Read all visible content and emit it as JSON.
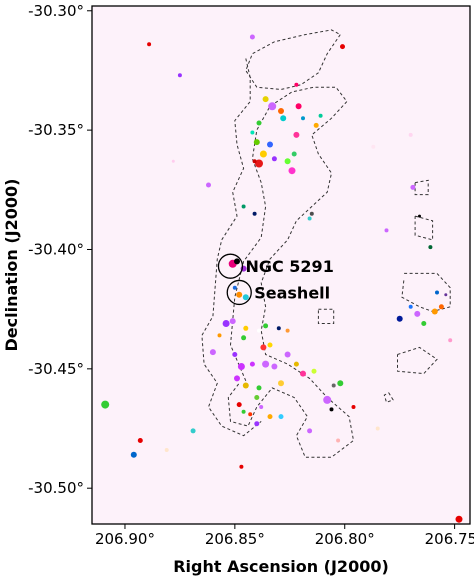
{
  "chart_data": {
    "type": "scatter",
    "title": "",
    "xlabel": "Right Ascension (J2000)",
    "ylabel": "Declination (J2000)",
    "xlim": [
      206.915,
      206.743
    ],
    "ylim": [
      -30.515,
      -30.298
    ],
    "x_inverted": true,
    "grid": false,
    "legend": "none",
    "colors": {
      "background": "#fdf2fa",
      "contour": "#333333"
    },
    "xticks": [
      {
        "value": 206.9,
        "label": "206.90°"
      },
      {
        "value": 206.85,
        "label": "206.85°"
      },
      {
        "value": 206.8,
        "label": "206.80°"
      },
      {
        "value": 206.75,
        "label": "206.75°"
      }
    ],
    "yticks": [
      {
        "value": -30.3,
        "label": "-30.30°"
      },
      {
        "value": -30.35,
        "label": "-30.35°"
      },
      {
        "value": -30.4,
        "label": "-30.40°"
      },
      {
        "value": -30.45,
        "label": "-30.45°"
      },
      {
        "value": -30.5,
        "label": "-30.50°"
      }
    ],
    "annotations": [
      {
        "name": "ngc-5291",
        "text": "NGC 5291",
        "ra": 206.852,
        "dec": -30.407
      },
      {
        "name": "seashell",
        "text": "Seashell",
        "ra": 206.848,
        "dec": -30.418
      }
    ],
    "contours": [
      [
        [
          206.845,
          -30.455
        ],
        [
          206.852,
          -30.44
        ],
        [
          206.85,
          -30.42
        ],
        [
          206.846,
          -30.405
        ],
        [
          206.838,
          -30.395
        ],
        [
          206.836,
          -30.382
        ],
        [
          206.838,
          -30.372
        ],
        [
          206.842,
          -30.362
        ],
        [
          206.84,
          -30.35
        ],
        [
          206.834,
          -30.34
        ],
        [
          206.824,
          -30.334
        ],
        [
          206.814,
          -30.332
        ],
        [
          206.804,
          -30.332
        ],
        [
          206.799,
          -30.338
        ],
        [
          206.806,
          -30.345
        ],
        [
          206.815,
          -30.352
        ],
        [
          206.812,
          -30.36
        ],
        [
          206.806,
          -30.368
        ],
        [
          206.808,
          -30.376
        ],
        [
          206.815,
          -30.382
        ],
        [
          206.822,
          -30.388
        ],
        [
          206.826,
          -30.396
        ],
        [
          206.834,
          -30.404
        ],
        [
          206.838,
          -30.414
        ],
        [
          206.836,
          -30.424
        ],
        [
          206.838,
          -30.434
        ],
        [
          206.836,
          -30.444
        ],
        [
          206.826,
          -30.448
        ],
        [
          206.816,
          -30.454
        ],
        [
          206.808,
          -30.462
        ],
        [
          206.798,
          -30.47
        ],
        [
          206.796,
          -30.48
        ],
        [
          206.806,
          -30.487
        ],
        [
          206.818,
          -30.487
        ],
        [
          206.822,
          -30.478
        ],
        [
          206.817,
          -30.47
        ],
        [
          206.823,
          -30.462
        ],
        [
          206.833,
          -30.458
        ],
        [
          206.84,
          -30.466
        ],
        [
          206.844,
          -30.474
        ],
        [
          206.852,
          -30.472
        ],
        [
          206.853,
          -30.462
        ],
        [
          206.848,
          -30.456
        ]
      ],
      [
        [
          206.845,
          -30.32
        ],
        [
          206.843,
          -30.328
        ],
        [
          206.843,
          -30.338
        ],
        [
          206.85,
          -30.346
        ],
        [
          206.849,
          -30.356
        ],
        [
          206.846,
          -30.366
        ],
        [
          206.851,
          -30.376
        ],
        [
          206.849,
          -30.386
        ],
        [
          206.856,
          -30.396
        ],
        [
          206.858,
          -30.404
        ],
        [
          206.859,
          -30.416
        ],
        [
          206.86,
          -30.428
        ],
        [
          206.865,
          -30.436
        ],
        [
          206.864,
          -30.448
        ],
        [
          206.858,
          -30.456
        ],
        [
          206.862,
          -30.466
        ],
        [
          206.856,
          -30.474
        ],
        [
          206.846,
          -30.478
        ],
        [
          206.838,
          -30.472
        ]
      ],
      [
        [
          206.802,
          -30.31
        ],
        [
          206.808,
          -30.318
        ],
        [
          206.812,
          -30.326
        ],
        [
          206.82,
          -30.331
        ],
        [
          206.829,
          -30.333
        ],
        [
          206.84,
          -30.332
        ],
        [
          206.845,
          -30.325
        ],
        [
          206.842,
          -30.318
        ],
        [
          206.832,
          -30.313
        ],
        [
          206.818,
          -30.31
        ],
        [
          206.806,
          -30.308
        ],
        [
          206.802,
          -30.31
        ]
      ],
      [
        [
          206.773,
          -30.41
        ],
        [
          206.758,
          -30.41
        ],
        [
          206.752,
          -30.416
        ],
        [
          206.752,
          -30.424
        ],
        [
          206.76,
          -30.426
        ],
        [
          206.766,
          -30.424
        ],
        [
          206.774,
          -30.42
        ],
        [
          206.773,
          -30.412
        ]
      ],
      [
        [
          206.776,
          -30.444
        ],
        [
          206.766,
          -30.441
        ],
        [
          206.758,
          -30.446
        ],
        [
          206.764,
          -30.452
        ],
        [
          206.776,
          -30.451
        ],
        [
          206.776,
          -30.444
        ]
      ],
      [
        [
          206.768,
          -30.386
        ],
        [
          206.76,
          -30.388
        ],
        [
          206.76,
          -30.396
        ],
        [
          206.768,
          -30.394
        ],
        [
          206.768,
          -30.386
        ]
      ],
      [
        [
          206.768,
          -30.372
        ],
        [
          206.762,
          -30.371
        ],
        [
          206.762,
          -30.377
        ],
        [
          206.768,
          -30.377
        ],
        [
          206.768,
          -30.372
        ]
      ],
      [
        [
          206.812,
          -30.425
        ],
        [
          206.805,
          -30.425
        ],
        [
          206.805,
          -30.431
        ],
        [
          206.812,
          -30.431
        ],
        [
          206.812,
          -30.425
        ]
      ],
      [
        [
          206.78,
          -30.46
        ],
        [
          206.778,
          -30.463
        ],
        [
          206.781,
          -30.464
        ],
        [
          206.782,
          -30.461
        ],
        [
          206.78,
          -30.46
        ]
      ]
    ],
    "points": [
      {
        "ra": 206.851,
        "dec": -30.406,
        "r": 4,
        "color": "#e8007a"
      },
      {
        "ra": 206.849,
        "dec": -30.405,
        "r": 3,
        "color": "#000000"
      },
      {
        "ra": 206.846,
        "dec": -30.408,
        "r": 3,
        "color": "#9c2bd6"
      },
      {
        "ra": 206.848,
        "dec": -30.419,
        "r": 3,
        "color": "#ff8c00"
      },
      {
        "ra": 206.845,
        "dec": -30.42,
        "r": 3,
        "color": "#20c8d8"
      },
      {
        "ra": 206.85,
        "dec": -30.416,
        "r": 2,
        "color": "#1c6be0"
      },
      {
        "ra": 206.842,
        "dec": -30.311,
        "r": 2.5,
        "color": "#cc66ff"
      },
      {
        "ra": 206.821,
        "dec": -30.34,
        "r": 3,
        "color": "#ff0066"
      },
      {
        "ra": 206.819,
        "dec": -30.345,
        "r": 2,
        "color": "#0099cc"
      },
      {
        "ra": 206.836,
        "dec": -30.337,
        "r": 3,
        "color": "#e6d200"
      },
      {
        "ra": 206.833,
        "dec": -30.34,
        "r": 4,
        "color": "#cc66ff"
      },
      {
        "ra": 206.829,
        "dec": -30.342,
        "r": 3,
        "color": "#ff6600"
      },
      {
        "ra": 206.839,
        "dec": -30.347,
        "r": 2.5,
        "color": "#33cc33"
      },
      {
        "ra": 206.828,
        "dec": -30.345,
        "r": 3,
        "color": "#00cccc"
      },
      {
        "ra": 206.822,
        "dec": -30.352,
        "r": 3,
        "color": "#ff3399"
      },
      {
        "ra": 206.842,
        "dec": -30.351,
        "r": 2,
        "color": "#00e6b8"
      },
      {
        "ra": 206.84,
        "dec": -30.355,
        "r": 3,
        "color": "#66cc00"
      },
      {
        "ra": 206.834,
        "dec": -30.356,
        "r": 3,
        "color": "#3366ff"
      },
      {
        "ra": 206.837,
        "dec": -30.36,
        "r": 3.5,
        "color": "#ffcc00"
      },
      {
        "ra": 206.832,
        "dec": -30.362,
        "r": 2.5,
        "color": "#9933ff"
      },
      {
        "ra": 206.839,
        "dec": -30.364,
        "r": 4,
        "color": "#e61919"
      },
      {
        "ra": 206.841,
        "dec": -30.363,
        "r": 2,
        "color": "#cc0000"
      },
      {
        "ra": 206.826,
        "dec": -30.363,
        "r": 3,
        "color": "#66ff33"
      },
      {
        "ra": 206.824,
        "dec": -30.367,
        "r": 3.5,
        "color": "#ff33cc"
      },
      {
        "ra": 206.823,
        "dec": -30.36,
        "r": 2.5,
        "color": "#33cc66"
      },
      {
        "ra": 206.813,
        "dec": -30.348,
        "r": 2.5,
        "color": "#ffaa00"
      },
      {
        "ra": 206.811,
        "dec": -30.344,
        "r": 2,
        "color": "#00cc99"
      },
      {
        "ra": 206.846,
        "dec": -30.382,
        "r": 2,
        "color": "#009966"
      },
      {
        "ra": 206.841,
        "dec": -30.385,
        "r": 2,
        "color": "#001a66"
      },
      {
        "ra": 206.815,
        "dec": -30.385,
        "r": 2,
        "color": "#4d4d4d"
      },
      {
        "ra": 206.816,
        "dec": -30.387,
        "r": 2,
        "color": "#33cccc"
      },
      {
        "ra": 206.851,
        "dec": -30.43,
        "r": 3,
        "color": "#cc66ff"
      },
      {
        "ra": 206.854,
        "dec": -30.431,
        "r": 3.5,
        "color": "#9933ff"
      },
      {
        "ra": 206.845,
        "dec": -30.433,
        "r": 2.5,
        "color": "#ffcc00"
      },
      {
        "ra": 206.839,
        "dec": -30.434,
        "r": 2,
        "color": "#ffffff"
      },
      {
        "ra": 206.836,
        "dec": -30.432,
        "r": 2.5,
        "color": "#33cc33"
      },
      {
        "ra": 206.83,
        "dec": -30.433,
        "r": 2,
        "color": "#001a66"
      },
      {
        "ra": 206.826,
        "dec": -30.434,
        "r": 2,
        "color": "#ff9933"
      },
      {
        "ra": 206.857,
        "dec": -30.436,
        "r": 2,
        "color": "#ff9900"
      },
      {
        "ra": 206.846,
        "dec": -30.437,
        "r": 2.5,
        "color": "#33cc33"
      },
      {
        "ra": 206.837,
        "dec": -30.441,
        "r": 3,
        "color": "#ff3333"
      },
      {
        "ra": 206.834,
        "dec": -30.44,
        "r": 2.5,
        "color": "#ffd700"
      },
      {
        "ra": 206.86,
        "dec": -30.443,
        "r": 3,
        "color": "#cc66ff"
      },
      {
        "ra": 206.85,
        "dec": -30.444,
        "r": 2.5,
        "color": "#9933ff"
      },
      {
        "ra": 206.826,
        "dec": -30.444,
        "r": 3,
        "color": "#cc66ff"
      },
      {
        "ra": 206.822,
        "dec": -30.448,
        "r": 2.5,
        "color": "#e6b800"
      },
      {
        "ra": 206.847,
        "dec": -30.449,
        "r": 3.5,
        "color": "#cc33ff"
      },
      {
        "ra": 206.842,
        "dec": -30.448,
        "r": 2.5,
        "color": "#cc33ff"
      },
      {
        "ra": 206.836,
        "dec": -30.448,
        "r": 3.5,
        "color": "#cc66ff"
      },
      {
        "ra": 206.832,
        "dec": -30.449,
        "r": 3,
        "color": "#cc66ff"
      },
      {
        "ra": 206.819,
        "dec": -30.452,
        "r": 3,
        "color": "#ff3399"
      },
      {
        "ra": 206.814,
        "dec": -30.451,
        "r": 2.5,
        "color": "#ccff33"
      },
      {
        "ra": 206.829,
        "dec": -30.456,
        "r": 3,
        "color": "#ffcc33"
      },
      {
        "ra": 206.849,
        "dec": -30.454,
        "r": 3,
        "color": "#cc33ff"
      },
      {
        "ra": 206.845,
        "dec": -30.457,
        "r": 3,
        "color": "#e6b800"
      },
      {
        "ra": 206.839,
        "dec": -30.458,
        "r": 2.5,
        "color": "#33cc33"
      },
      {
        "ra": 206.84,
        "dec": -30.462,
        "r": 2.5,
        "color": "#66cc33"
      },
      {
        "ra": 206.848,
        "dec": -30.465,
        "r": 2.5,
        "color": "#e60000"
      },
      {
        "ra": 206.846,
        "dec": -30.468,
        "r": 2,
        "color": "#33cc33"
      },
      {
        "ra": 206.843,
        "dec": -30.469,
        "r": 2,
        "color": "#ff3300"
      },
      {
        "ra": 206.838,
        "dec": -30.466,
        "r": 2,
        "color": "#cc66ff"
      },
      {
        "ra": 206.834,
        "dec": -30.47,
        "r": 2.5,
        "color": "#ffaa00"
      },
      {
        "ra": 206.84,
        "dec": -30.473,
        "r": 2.5,
        "color": "#9933ff"
      },
      {
        "ra": 206.829,
        "dec": -30.47,
        "r": 2.5,
        "color": "#33ccff"
      },
      {
        "ra": 206.808,
        "dec": -30.463,
        "r": 4,
        "color": "#cc66ff"
      },
      {
        "ra": 206.802,
        "dec": -30.456,
        "r": 3,
        "color": "#33cc33"
      },
      {
        "ra": 206.805,
        "dec": -30.457,
        "r": 2,
        "color": "#666666"
      },
      {
        "ra": 206.806,
        "dec": -30.467,
        "r": 2,
        "color": "#000000"
      },
      {
        "ra": 206.796,
        "dec": -30.466,
        "r": 2,
        "color": "#e60000"
      },
      {
        "ra": 206.816,
        "dec": -30.476,
        "r": 2.5,
        "color": "#cc66ff"
      },
      {
        "ra": 206.769,
        "dec": -30.374,
        "r": 2.5,
        "color": "#cc66ff"
      },
      {
        "ra": 206.766,
        "dec": -30.386,
        "r": 1.5,
        "color": "#000000"
      },
      {
        "ra": 206.761,
        "dec": -30.399,
        "r": 2,
        "color": "#006633"
      },
      {
        "ra": 206.77,
        "dec": -30.424,
        "r": 2,
        "color": "#1a75ff"
      },
      {
        "ra": 206.767,
        "dec": -30.427,
        "r": 3,
        "color": "#cc66ff"
      },
      {
        "ra": 206.764,
        "dec": -30.431,
        "r": 2.5,
        "color": "#33cc33"
      },
      {
        "ra": 206.759,
        "dec": -30.426,
        "r": 3,
        "color": "#ff9900"
      },
      {
        "ra": 206.756,
        "dec": -30.424,
        "r": 2.5,
        "color": "#ff6600"
      },
      {
        "ra": 206.758,
        "dec": -30.418,
        "r": 2,
        "color": "#0066cc"
      },
      {
        "ra": 206.754,
        "dec": -30.419,
        "r": 1.5,
        "color": "#663399"
      },
      {
        "ra": 206.775,
        "dec": -30.429,
        "r": 3,
        "color": "#001a99"
      },
      {
        "ra": 206.889,
        "dec": -30.314,
        "r": 2,
        "color": "#e60000"
      },
      {
        "ra": 206.875,
        "dec": -30.327,
        "r": 2,
        "color": "#9933ff"
      },
      {
        "ra": 206.862,
        "dec": -30.373,
        "r": 2.5,
        "color": "#cc66ff"
      },
      {
        "ra": 206.878,
        "dec": -30.363,
        "r": 1.5,
        "color": "#ffccee"
      },
      {
        "ra": 206.822,
        "dec": -30.331,
        "r": 2,
        "color": "#ff0066"
      },
      {
        "ra": 206.801,
        "dec": -30.315,
        "r": 2.5,
        "color": "#e60000"
      },
      {
        "ra": 206.787,
        "dec": -30.357,
        "r": 2,
        "color": "#ffe6f2"
      },
      {
        "ra": 206.781,
        "dec": -30.392,
        "r": 2,
        "color": "#cc66ff"
      },
      {
        "ra": 206.77,
        "dec": -30.352,
        "r": 2,
        "color": "#ffd6f0"
      },
      {
        "ra": 206.909,
        "dec": -30.465,
        "r": 4,
        "color": "#33cc33"
      },
      {
        "ra": 206.893,
        "dec": -30.48,
        "r": 2.5,
        "color": "#e60000"
      },
      {
        "ra": 206.896,
        "dec": -30.486,
        "r": 3,
        "color": "#0066cc"
      },
      {
        "ra": 206.881,
        "dec": -30.484,
        "r": 2,
        "color": "#ffe6cc"
      },
      {
        "ra": 206.869,
        "dec": -30.476,
        "r": 2.5,
        "color": "#33cccc"
      },
      {
        "ra": 206.803,
        "dec": -30.48,
        "r": 2,
        "color": "#ffb3b3"
      },
      {
        "ra": 206.785,
        "dec": -30.475,
        "r": 2,
        "color": "#ffe6cc"
      },
      {
        "ra": 206.847,
        "dec": -30.491,
        "r": 2,
        "color": "#e60000"
      },
      {
        "ra": 206.748,
        "dec": -30.513,
        "r": 3.5,
        "color": "#e60000"
      },
      {
        "ra": 206.752,
        "dec": -30.438,
        "r": 2,
        "color": "#ff99cc"
      }
    ]
  }
}
